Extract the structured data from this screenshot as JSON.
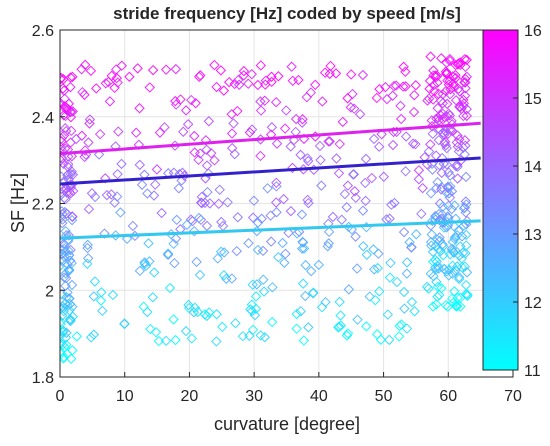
{
  "chart_data": {
    "type": "scatter",
    "title": "stride frequency [Hz] coded by speed [m/s]",
    "xlabel": "curvature [degree]",
    "ylabel": "SF [Hz]",
    "xlim": [
      0,
      70
    ],
    "ylim": [
      1.8,
      2.6
    ],
    "xticks": [
      0,
      10,
      20,
      30,
      40,
      50,
      60,
      70
    ],
    "yticks": [
      1.8,
      2,
      2.2,
      2.4,
      2.6
    ],
    "ytick_labels": [
      "1.8",
      "2",
      "2.2",
      "2.4",
      "2.6"
    ],
    "grid": true,
    "marker": "diamond",
    "colorbar": {
      "range": [
        11,
        16
      ],
      "ticks": [
        11,
        12,
        13,
        14,
        15,
        16
      ],
      "colormap": "cool",
      "color_low": "#00ffff",
      "color_high": "#ff00ff"
    },
    "trend_lines": [
      {
        "speed": 15.5,
        "color": "#dd22ee",
        "x": [
          0,
          65
        ],
        "y": [
          2.315,
          2.385
        ]
      },
      {
        "speed": 14.0,
        "color": "#3322cc",
        "x": [
          0,
          65
        ],
        "y": [
          2.245,
          2.305
        ]
      },
      {
        "speed": 12.2,
        "color": "#33c8f0",
        "x": [
          0,
          65
        ],
        "y": [
          2.12,
          2.16
        ]
      }
    ],
    "point_clusters": [
      {
        "x_range": [
          0,
          2
        ],
        "y_range": [
          1.84,
          2.5
        ],
        "count": 140
      },
      {
        "x_range": [
          2,
          57
        ],
        "y_range": [
          1.88,
          2.52
        ],
        "count": 420
      },
      {
        "x_range": [
          57,
          63
        ],
        "y_range": [
          1.96,
          2.54
        ],
        "count": 240
      }
    ]
  }
}
